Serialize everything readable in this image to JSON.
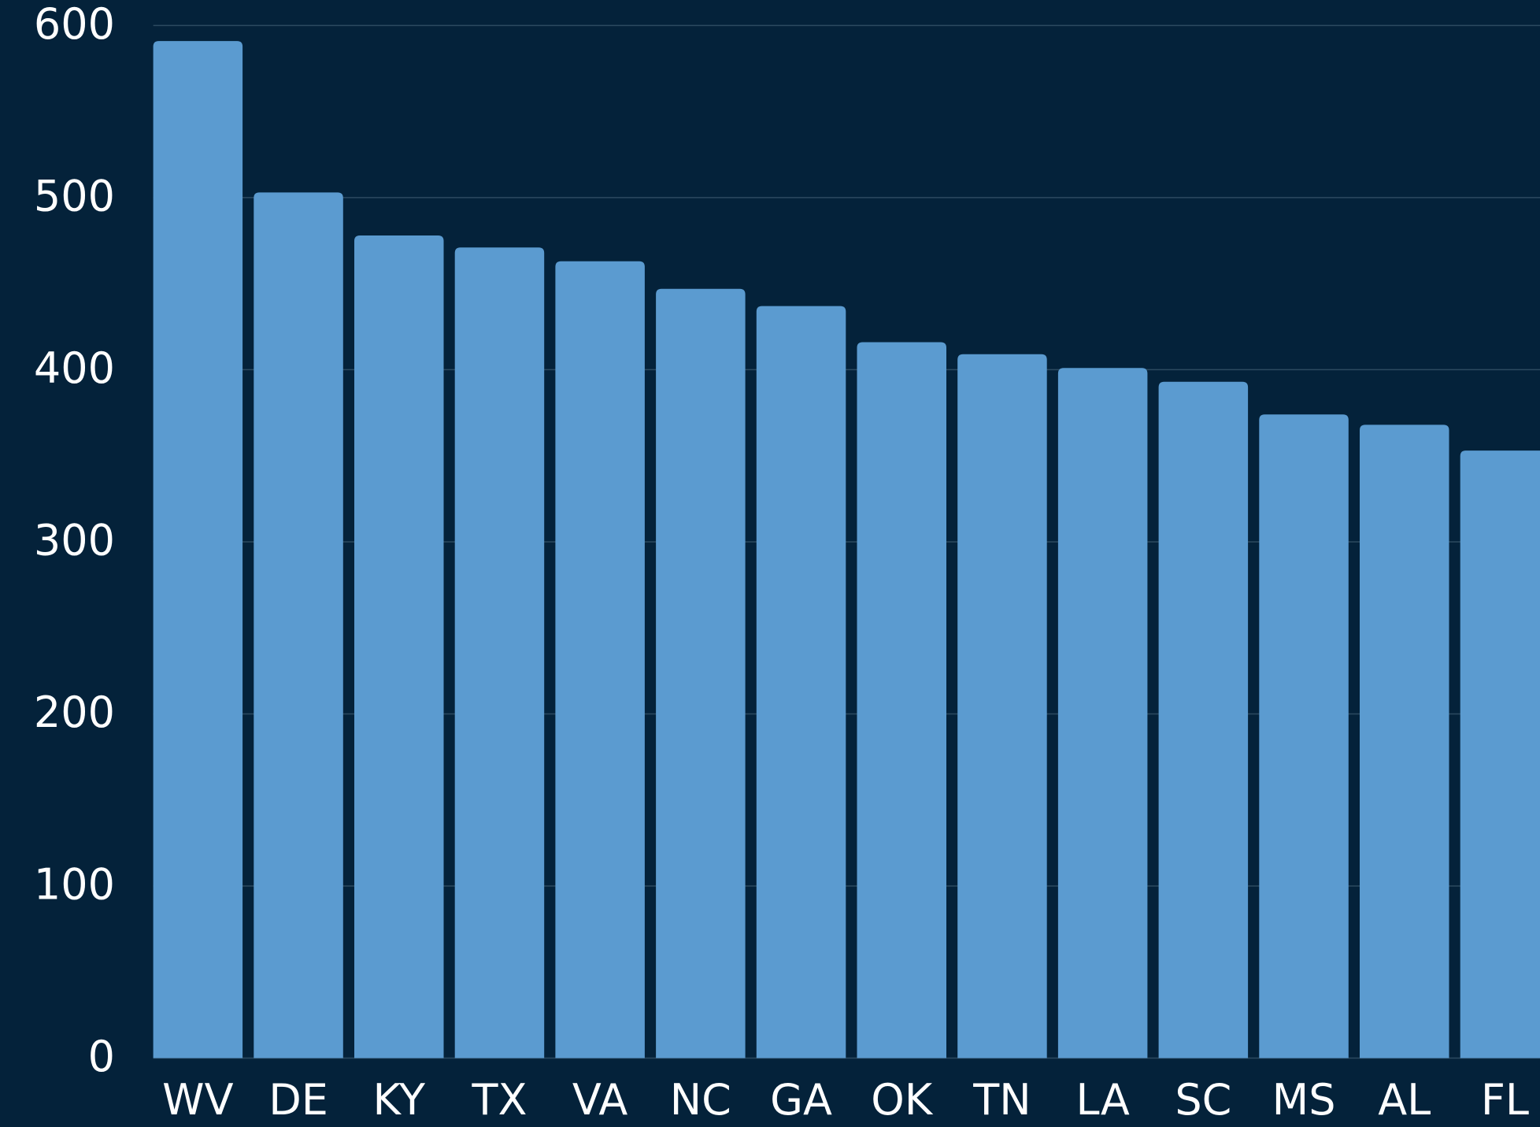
{
  "chart_data": {
    "type": "bar",
    "categories": [
      "WV",
      "DE",
      "KY",
      "TX",
      "VA",
      "NC",
      "GA",
      "OK",
      "TN",
      "LA",
      "SC",
      "MS",
      "AL",
      "FL"
    ],
    "values": [
      591,
      503,
      478,
      471,
      463,
      447,
      437,
      416,
      409,
      401,
      393,
      374,
      368,
      353
    ],
    "color": "#5b9bd0",
    "ylim": [
      0,
      600
    ],
    "yticks": [
      0,
      100,
      200,
      300,
      400,
      500,
      600
    ],
    "grid": true
  }
}
